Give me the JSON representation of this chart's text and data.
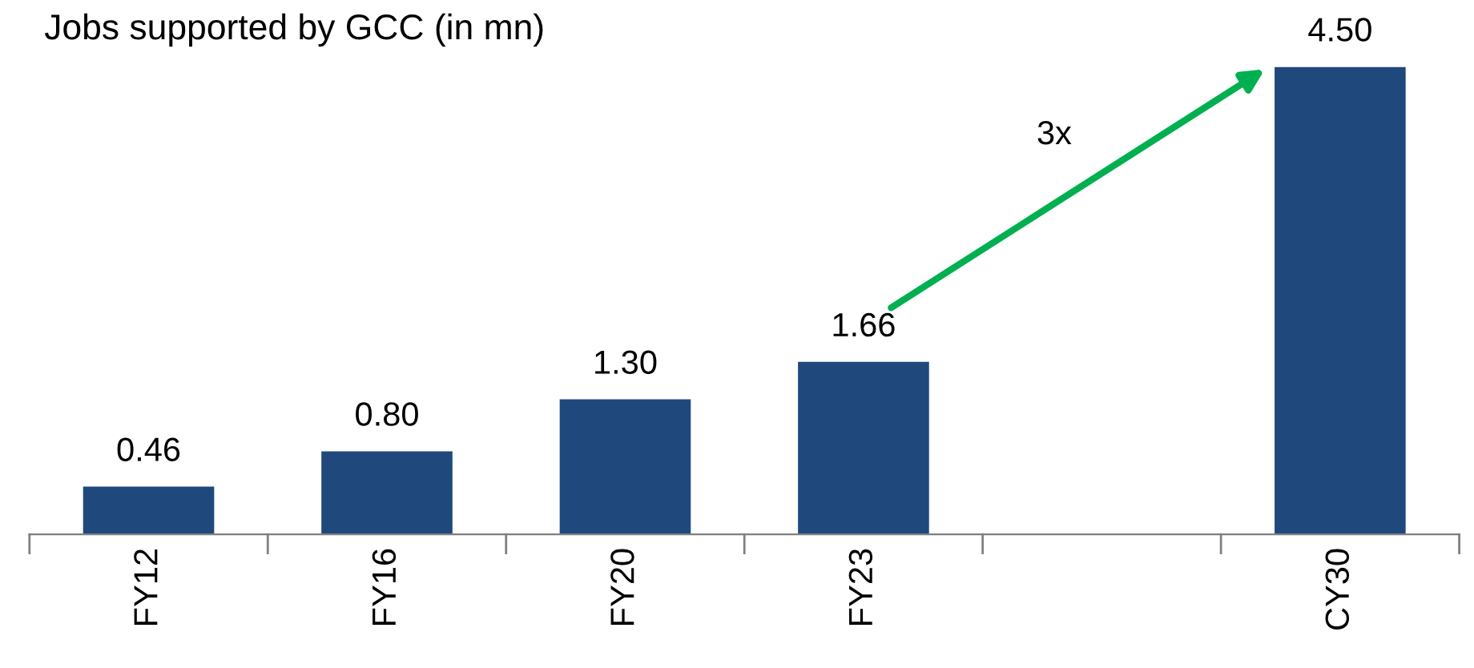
{
  "chart_data": {
    "type": "bar",
    "title": "Jobs supported by GCC (in mn)",
    "categories": [
      "FY12",
      "FY16",
      "FY20",
      "FY23",
      null,
      "CY30"
    ],
    "values": [
      0.46,
      0.8,
      1.3,
      1.66,
      null,
      4.5
    ],
    "value_labels": [
      "0.46",
      "0.80",
      "1.30",
      "1.66",
      null,
      "4.50"
    ],
    "color": "#1f497d",
    "grid": false,
    "annotations": [
      "3x"
    ]
  }
}
